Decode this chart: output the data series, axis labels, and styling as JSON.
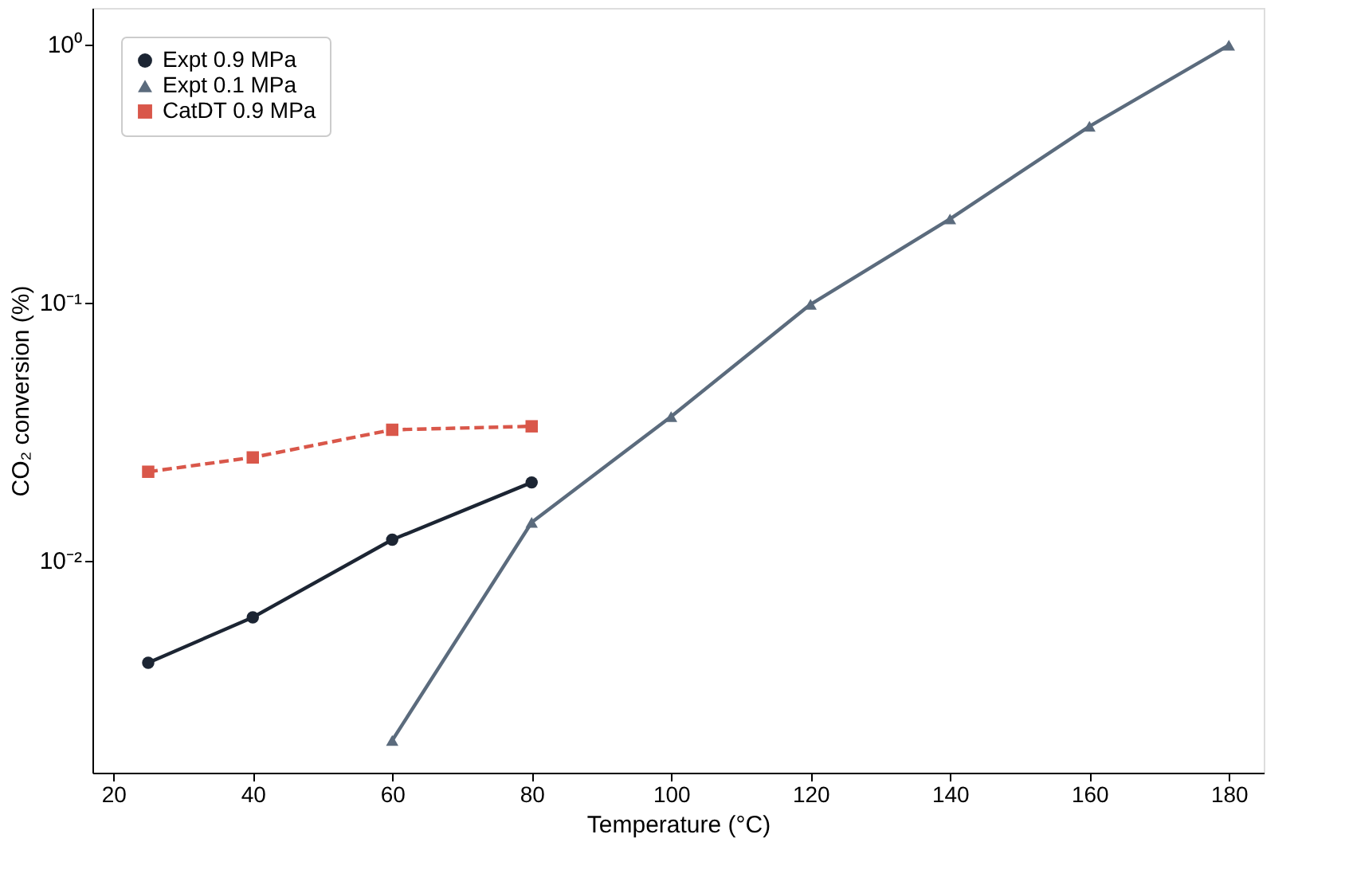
{
  "chart_data": {
    "type": "line",
    "xlabel": "Temperature (°C)",
    "ylabel": "CO₂ conversion (%)",
    "log": "y",
    "xlim": [
      17,
      185
    ],
    "xticks": [
      20,
      40,
      60,
      80,
      100,
      120,
      140,
      160,
      180
    ],
    "ylim": [
      0.0015,
      1.38
    ],
    "yticks": [
      {
        "value": 0.01,
        "label": "10⁻²"
      },
      {
        "value": 0.1,
        "label": "10⁻¹"
      },
      {
        "value": 1,
        "label": "10⁰"
      }
    ],
    "grid": false,
    "legend": "top left",
    "series": [
      {
        "name": "Expt 0.9 MPa",
        "color": "#1c2533",
        "marker": "circle",
        "line_style": "solid",
        "x": [
          25,
          40,
          60,
          80
        ],
        "values": [
          0.004,
          0.006,
          0.012,
          0.02
        ]
      },
      {
        "name": "Expt 0.1 MPa",
        "color": "#5b6b7d",
        "marker": "triangle",
        "line_style": "solid",
        "x": [
          60,
          80,
          100,
          120,
          140,
          160,
          180
        ],
        "values": [
          0.002,
          0.014,
          0.036,
          0.098,
          0.21,
          0.48,
          0.99
        ]
      },
      {
        "name": "CatDT 0.9 MPa",
        "color": "#d9574a",
        "marker": "square",
        "line_style": "dashed",
        "x": [
          25,
          40,
          60,
          80
        ],
        "values": [
          0.022,
          0.025,
          0.032,
          0.033
        ]
      }
    ]
  }
}
